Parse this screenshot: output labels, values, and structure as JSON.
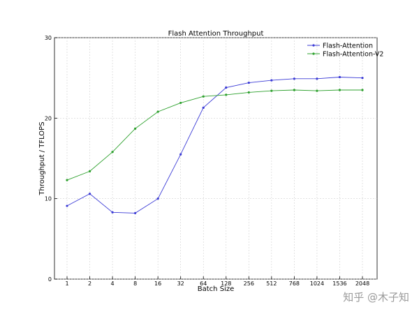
{
  "chart_data": {
    "type": "line",
    "title": "Flash Attention Throughput",
    "xlabel": "Batch Size",
    "ylabel": "Throughput / TFLOPS",
    "categories": [
      "1",
      "2",
      "4",
      "8",
      "16",
      "32",
      "64",
      "128",
      "256",
      "512",
      "768",
      "1024",
      "1536",
      "2048"
    ],
    "ylim": [
      0,
      30
    ],
    "yticks": [
      "0",
      "10",
      "20",
      "30"
    ],
    "grid": true,
    "legend": "top-right",
    "series": [
      {
        "name": "Flash-Attention",
        "color": "#3b3bd6",
        "values": [
          9.1,
          10.6,
          8.3,
          8.2,
          10.0,
          15.5,
          21.3,
          23.8,
          24.4,
          24.7,
          24.9,
          24.9,
          25.1,
          25.0
        ]
      },
      {
        "name": "Flash-Attention-V2",
        "color": "#2ca02c",
        "values": [
          12.3,
          13.4,
          15.8,
          18.7,
          20.8,
          21.9,
          22.7,
          22.9,
          23.2,
          23.4,
          23.5,
          23.4,
          23.5,
          23.5
        ]
      }
    ]
  },
  "watermark": "知乎 @木子知"
}
